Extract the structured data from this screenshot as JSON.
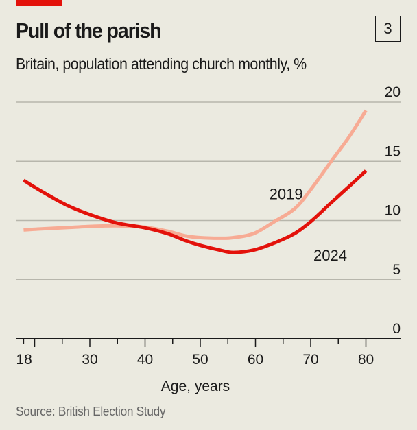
{
  "header": {
    "title": "Pull of the parish",
    "subtitle": "Britain, population attending church monthly, %",
    "chart_number": "3"
  },
  "footer": {
    "source": "Source: British Election Study"
  },
  "colors": {
    "accent": "#e3120b",
    "series_2019": "#f7ab94",
    "series_2024": "#e3120b",
    "background": "#ebeae0",
    "gridline": "#b7b6ac",
    "axis": "#1a1a1a"
  },
  "chart_data": {
    "type": "line",
    "title": "Pull of the parish",
    "subtitle": "Britain, population attending church monthly, %",
    "xlabel": "Age, years",
    "ylabel": "",
    "xlim": [
      16.5,
      86.5
    ],
    "ylim": [
      0,
      20
    ],
    "x_ticks_labeled": [
      18,
      30,
      40,
      50,
      60,
      70,
      80
    ],
    "x_ticks_minor": [
      20,
      25,
      35,
      45,
      55,
      65,
      75
    ],
    "y_ticks": [
      0,
      5,
      10,
      15,
      20
    ],
    "y_axis_side": "right",
    "grid": true,
    "legend": "inline-labels",
    "series": [
      {
        "name": "2019",
        "color": "#f7ab94",
        "x": [
          18,
          21.5,
          25.8,
          30,
          34.8,
          39.8,
          44,
          47.3,
          50,
          53.5,
          56,
          59.7,
          63.4,
          67.1,
          70,
          73.7,
          77,
          80
        ],
        "y": [
          9.2,
          9.3,
          9.4,
          9.5,
          9.55,
          9.45,
          9.1,
          8.7,
          8.55,
          8.5,
          8.55,
          8.9,
          9.9,
          11.0,
          12.6,
          15.0,
          17.1,
          19.3
        ]
      },
      {
        "name": "2024",
        "color": "#e3120b",
        "x": [
          18,
          21.5,
          25.8,
          30,
          34.8,
          39.8,
          44,
          47.3,
          50,
          53.5,
          56,
          59.7,
          63.4,
          67.1,
          70,
          73.7,
          77,
          80
        ],
        "y": [
          13.4,
          12.4,
          11.3,
          10.5,
          9.8,
          9.4,
          8.9,
          8.3,
          7.9,
          7.5,
          7.3,
          7.5,
          8.1,
          8.9,
          9.9,
          11.5,
          12.9,
          14.2
        ]
      }
    ],
    "annotations": [
      {
        "text": "2019",
        "x": 62.5,
        "y": 11.8
      },
      {
        "text": "2024",
        "x": 70.5,
        "y": 6.6
      }
    ]
  }
}
